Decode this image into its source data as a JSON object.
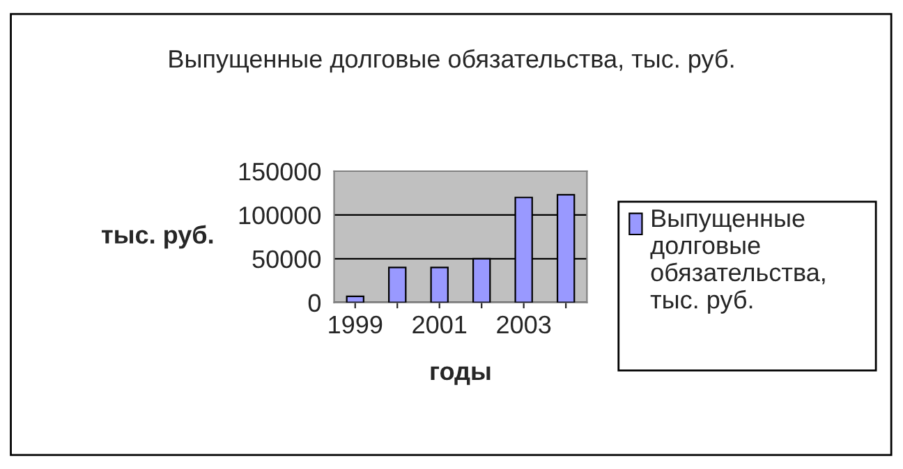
{
  "chart_data": {
    "type": "bar",
    "title": "Выпущенные долговые обязательства, тыс. руб.",
    "xlabel": "годы",
    "ylabel": "тыс. руб.",
    "categories": [
      "1999",
      null,
      "2001",
      null,
      "2003",
      null
    ],
    "series": [
      {
        "name": "Выпущенные долговые обязательства, тыс. руб.",
        "color": "#9999ff",
        "values": [
          7000,
          40000,
          40000,
          50000,
          120000,
          123000
        ]
      }
    ],
    "ylim": [
      0,
      150000
    ],
    "yticks": [
      0,
      50000,
      100000,
      150000
    ],
    "grid": "y",
    "legend": "right"
  }
}
